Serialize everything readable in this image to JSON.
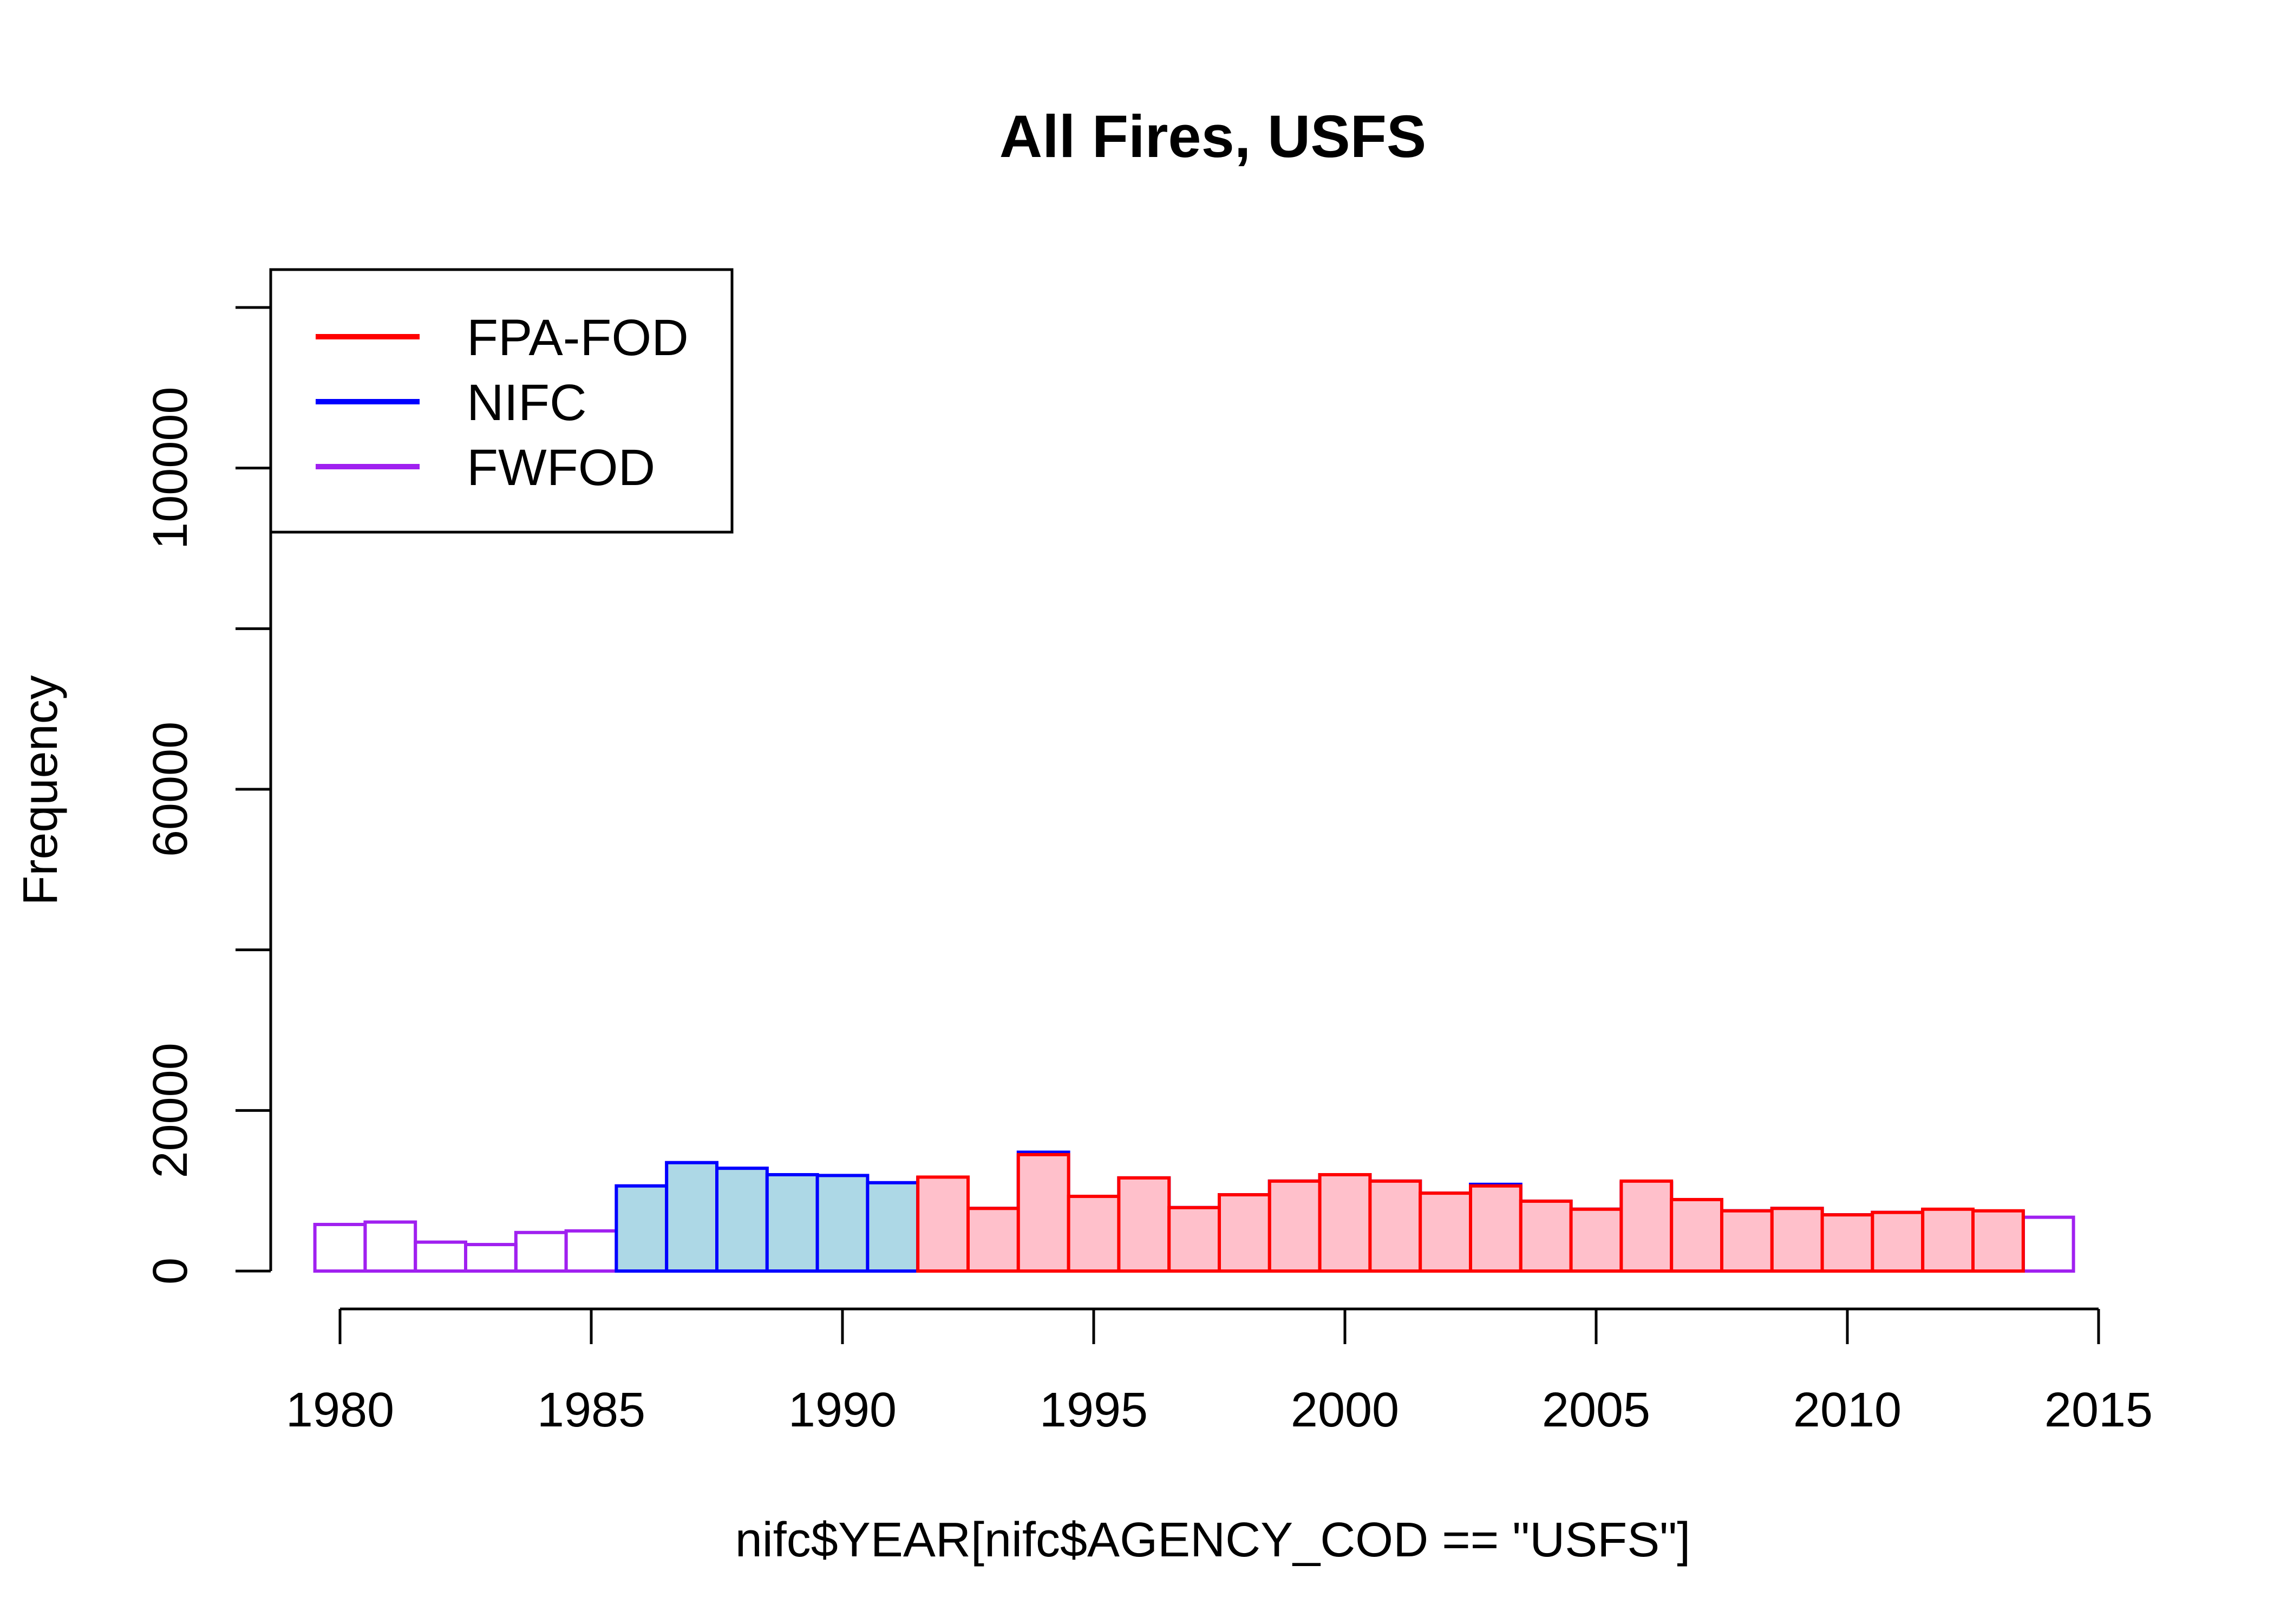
{
  "chart_data": {
    "type": "bar",
    "title": "All Fires, USFS",
    "xlabel": "nifc$YEAR[nifc$AGENCY_COD == \"USFS\"]",
    "ylabel": "Frequency",
    "xlim": [
      1980,
      2015
    ],
    "ylim": [
      0,
      120000
    ],
    "x_ticks": [
      "1980",
      "1985",
      "1990",
      "1995",
      "2000",
      "2005",
      "2010",
      "2015"
    ],
    "y_ticks": [
      "0",
      "20000",
      "60000",
      "100000"
    ],
    "y_tick_marks": [
      0,
      20000,
      40000,
      60000,
      80000,
      100000,
      120000
    ],
    "bin_start": 1979.5,
    "bin_width": 1,
    "legend": {
      "position": "top-left",
      "entries": [
        {
          "label": "FPA-FOD",
          "color": "#ff0000"
        },
        {
          "label": "NIFC",
          "color": "#0000ff"
        },
        {
          "label": "FWFOD",
          "color": "#a020f0"
        }
      ]
    },
    "series": [
      {
        "name": "FWFOD",
        "stroke": "#a020f0",
        "fill": "none",
        "x": [
          1980,
          1981,
          1982,
          1983,
          1984,
          1985,
          1986,
          1987,
          1988,
          1989,
          1990,
          1991,
          1992,
          1993,
          1994,
          1995,
          1996,
          1997,
          1998,
          1999,
          2000,
          2001,
          2002,
          2003,
          2004,
          2005,
          2006,
          2007,
          2008,
          2009,
          2010,
          2011,
          2012,
          2013,
          2014
        ],
        "values": [
          5800,
          6100,
          3600,
          3300,
          4800,
          5000,
          10600,
          13500,
          12800,
          12000,
          11900,
          11000,
          11600,
          7800,
          14400,
          9300,
          11600,
          7900,
          9500,
          11200,
          12000,
          11200,
          9700,
          10600,
          8700,
          7700,
          11000,
          8900,
          7500,
          7800,
          7000,
          7300,
          7600,
          7400,
          6700
        ]
      },
      {
        "name": "NIFC",
        "stroke": "#0000ff",
        "fill": "#add8e6",
        "x": [
          1986,
          1987,
          1988,
          1989,
          1990,
          1991,
          1992,
          1993,
          1994,
          1995,
          1996,
          1997,
          1998,
          1999,
          2000,
          2001,
          2002,
          2003,
          2004,
          2005,
          2006,
          2007,
          2008,
          2009,
          2010,
          2011,
          2012,
          2013
        ],
        "values": [
          10600,
          13500,
          12800,
          12000,
          11900,
          11000,
          11600,
          7800,
          14800,
          9300,
          11600,
          7900,
          9500,
          11200,
          12000,
          11200,
          9700,
          10800,
          8700,
          7700,
          11000,
          8900,
          7500,
          7800,
          7000,
          7300,
          7600,
          7400
        ]
      },
      {
        "name": "FPA-FOD",
        "stroke": "#ff0000",
        "fill": "#ffc0cb",
        "x": [
          1992,
          1993,
          1994,
          1995,
          1996,
          1997,
          1998,
          1999,
          2000,
          2001,
          2002,
          2003,
          2004,
          2005,
          2006,
          2007,
          2008,
          2009,
          2010,
          2011,
          2012,
          2013
        ],
        "values": [
          11700,
          7800,
          14500,
          9300,
          11600,
          7900,
          9500,
          11200,
          12000,
          11200,
          9700,
          10600,
          8700,
          7700,
          11200,
          8900,
          7500,
          7800,
          7000,
          7300,
          7700,
          7500
        ]
      }
    ]
  }
}
